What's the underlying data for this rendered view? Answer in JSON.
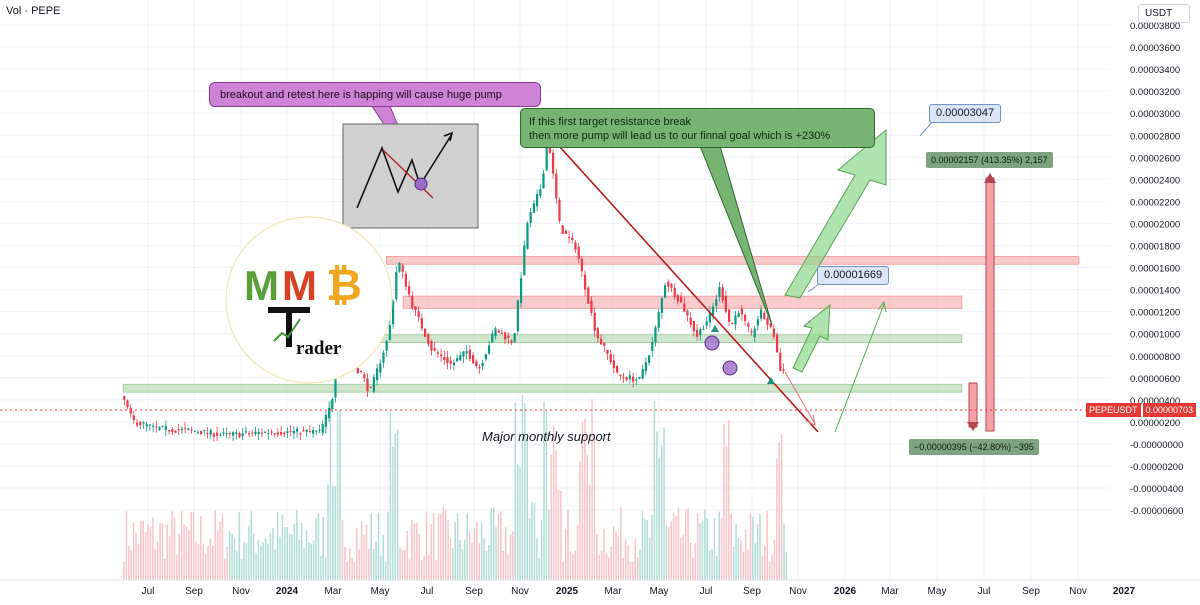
{
  "header": {
    "indicator_label": "Vol · PEPE",
    "currency": "USDT"
  },
  "colors": {
    "up": "#089981",
    "down": "#f23645",
    "resistance": "#f7b6b9",
    "support": "#b7d6b5",
    "purple_note": "#cf83d6",
    "green_note": "#77b474"
  },
  "annotations": {
    "note_breakout": "breakout and retest here is happing will cause huge pump",
    "note_target_line1": "If this first target resistance break",
    "note_target_line2": "then more pump will lead us to our finnal goal which is +230%",
    "target_first": "0.00001669",
    "target_final": "0.00003047",
    "measure_up": "0.00002157 (413.35%) 2,157",
    "measure_down": "−0.00000395 (−42.80%) −395",
    "support_label": "Major monthly support"
  },
  "badge": {
    "symbol": "PEPEUSDT",
    "price": "0.00000703"
  },
  "logo": {
    "letters": "MMB",
    "subtitle": "Trader"
  },
  "chart_data": {
    "type": "candlestick",
    "title": "",
    "xlabel": "",
    "ylabel": "",
    "y_ticks": [
      "0.00003800",
      "0.00003600",
      "0.00003400",
      "0.00003200",
      "0.00003000",
      "0.00002800",
      "0.00002600",
      "0.00002400",
      "0.00002200",
      "0.00002000",
      "0.00001800",
      "0.00001600",
      "0.00001400",
      "0.00001200",
      "0.00001000",
      "0.00000800",
      "0.00000600",
      "0.00000400",
      "0.00000200",
      "-0.00000000",
      "-0.00000200",
      "-0.00000400",
      "-0.00000600"
    ],
    "x_ticks": [
      {
        "label": "Jul",
        "bold": false
      },
      {
        "label": "Sep",
        "bold": false
      },
      {
        "label": "Nov",
        "bold": false
      },
      {
        "label": "2024",
        "bold": true
      },
      {
        "label": "Mar",
        "bold": false
      },
      {
        "label": "May",
        "bold": false
      },
      {
        "label": "Jul",
        "bold": false
      },
      {
        "label": "Sep",
        "bold": false
      },
      {
        "label": "Nov",
        "bold": false
      },
      {
        "label": "2025",
        "bold": true
      },
      {
        "label": "Mar",
        "bold": false
      },
      {
        "label": "May",
        "bold": false
      },
      {
        "label": "Jul",
        "bold": false
      },
      {
        "label": "Sep",
        "bold": false
      },
      {
        "label": "Nov",
        "bold": false
      },
      {
        "label": "2026",
        "bold": true
      },
      {
        "label": "Mar",
        "bold": false
      },
      {
        "label": "May",
        "bold": false
      },
      {
        "label": "Jul",
        "bold": false
      },
      {
        "label": "Sep",
        "bold": false
      },
      {
        "label": "Nov",
        "bold": false
      },
      {
        "label": "2027",
        "bold": true
      }
    ],
    "ylim": [
      -6.8e-06,
      3.92e-05
    ],
    "price_path": [
      [
        "2023-06-01",
        4.5e-06
      ],
      [
        "2023-06-15",
        2.1e-06
      ],
      [
        "2023-07-15",
        1.4e-06
      ],
      [
        "2023-09-01",
        1.2e-06
      ],
      [
        "2023-10-15",
        8e-07
      ],
      [
        "2023-12-15",
        1.1e-06
      ],
      [
        "2024-02-15",
        1.1e-06
      ],
      [
        "2024-03-01",
        3.6e-06
      ],
      [
        "2024-03-10",
        8.2e-06
      ],
      [
        "2024-04-10",
        6.4e-06
      ],
      [
        "2024-04-20",
        4.6e-06
      ],
      [
        "2024-05-15",
        9.8e-06
      ],
      [
        "2024-05-27",
        1.68e-05
      ],
      [
        "2024-06-15",
        1.26e-05
      ],
      [
        "2024-07-10",
        8.6e-06
      ],
      [
        "2024-08-05",
        7.2e-06
      ],
      [
        "2024-08-25",
        8.4e-06
      ],
      [
        "2024-09-10",
        6.8e-06
      ],
      [
        "2024-10-01",
        1.04e-05
      ],
      [
        "2024-10-25",
        9.2e-06
      ],
      [
        "2024-11-12",
        2e-05
      ],
      [
        "2024-12-01",
        2.35e-05
      ],
      [
        "2024-12-09",
        2.8e-05
      ],
      [
        "2024-12-25",
        1.96e-05
      ],
      [
        "2025-01-15",
        1.78e-05
      ],
      [
        "2025-02-10",
        1e-05
      ],
      [
        "2025-03-01",
        7.6e-06
      ],
      [
        "2025-03-10",
        6.2e-06
      ],
      [
        "2025-04-08",
        5.8e-06
      ],
      [
        "2025-04-25",
        9.2e-06
      ],
      [
        "2025-05-12",
        1.48e-05
      ],
      [
        "2025-06-01",
        1.28e-05
      ],
      [
        "2025-06-22",
        9.8e-06
      ],
      [
        "2025-07-10",
        1.18e-05
      ],
      [
        "2025-07-22",
        1.42e-05
      ],
      [
        "2025-08-05",
        1.06e-05
      ],
      [
        "2025-08-15",
        1.22e-05
      ],
      [
        "2025-09-01",
        9.8e-06
      ],
      [
        "2025-09-13",
        1.2e-05
      ],
      [
        "2025-10-01",
        9.8e-06
      ],
      [
        "2025-10-10",
        6.2e-06
      ],
      [
        "2025-10-14",
        7e-06
      ]
    ],
    "zones": [
      {
        "name": "resistance-top",
        "from": "2024-05-10",
        "to": "2026-11-01",
        "low": 1.63e-05,
        "high": 1.7e-05,
        "color": "#f4a0a4"
      },
      {
        "name": "resistance-mid",
        "from": "2024-06-01",
        "to": "2026-06-01",
        "low": 1.23e-05,
        "high": 1.34e-05,
        "color": "#f4a0a4"
      },
      {
        "name": "support-mid",
        "from": "2024-05-01",
        "to": "2026-06-01",
        "low": 9.2e-06,
        "high": 9.9e-06,
        "color": "#a7cfa4"
      },
      {
        "name": "support-major",
        "from": "2023-06-01",
        "to": "2026-06-01",
        "low": 4.7e-06,
        "high": 5.4e-06,
        "color": "#a7cfa4"
      }
    ],
    "trendline": {
      "from": [
        "2024-12-05",
        2.83e-05
      ],
      "to": [
        "2025-11-25",
        1.1e-06
      ],
      "color": "#b71c1c"
    },
    "legend": "none",
    "grid": true
  }
}
